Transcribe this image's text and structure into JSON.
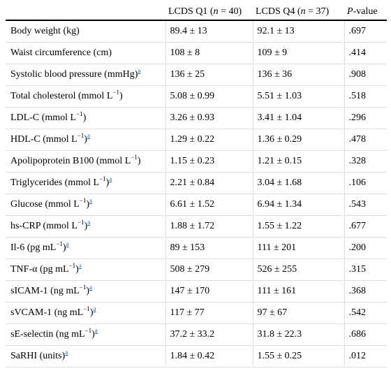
{
  "table": {
    "header": [
      [],
      [
        {
          "text": "LCDS Q1 ("
        },
        {
          "text": "n",
          "italic": true
        },
        {
          "text": " = 40)"
        }
      ],
      [
        {
          "text": "LCDS Q4 ("
        },
        {
          "text": "n",
          "italic": true
        },
        {
          "text": " = 37)"
        }
      ],
      [
        {
          "text": "P",
          "italic": true
        },
        {
          "text": "-value"
        }
      ]
    ],
    "rows": [
      {
        "label": [
          {
            "text": "Body weight (kg)"
          }
        ],
        "cells": [
          "89.4 ± 13",
          "92.1 ± 13",
          ".697"
        ]
      },
      {
        "label": [
          {
            "text": "Waist circumference (cm)"
          }
        ],
        "cells": [
          "108 ± 8",
          "109 ± 9",
          ".414"
        ]
      },
      {
        "label": [
          {
            "text": "Systolic blood pressure (mmHg)"
          }
        ],
        "note": "a",
        "cells": [
          "136 ± 25",
          "136 ± 36",
          ".908"
        ]
      },
      {
        "label": [
          {
            "text": "Total cholesterol (mmol L"
          },
          {
            "text": "−1",
            "sup": true
          },
          {
            "text": ")"
          }
        ],
        "cells": [
          "5.08 ± 0.99",
          "5.51 ± 1.03",
          ".518"
        ]
      },
      {
        "label": [
          {
            "text": "LDL-C (mmol L"
          },
          {
            "text": "−1",
            "sup": true
          },
          {
            "text": ")"
          }
        ],
        "cells": [
          "3.26 ± 0.93",
          "3.41 ± 1.04",
          ".296"
        ]
      },
      {
        "label": [
          {
            "text": "HDL-C (mmol L"
          },
          {
            "text": "−1",
            "sup": true
          },
          {
            "text": ")"
          }
        ],
        "note": "a",
        "cells": [
          "1.29 ± 0.22",
          "1.36 ± 0.29",
          ".478"
        ]
      },
      {
        "label": [
          {
            "text": "Apolipoprotein B100 (mmol L"
          },
          {
            "text": "−1",
            "sup": true
          },
          {
            "text": ")"
          }
        ],
        "cells": [
          "1.15 ± 0.23",
          "1.21 ± 0.15",
          ".328"
        ]
      },
      {
        "label": [
          {
            "text": "Triglycerides (mmol L"
          },
          {
            "text": "−1",
            "sup": true
          },
          {
            "text": ")"
          }
        ],
        "note": "a",
        "cells": [
          "2.21 ± 0.84",
          "3.04 ± 1.68",
          ".106"
        ]
      },
      {
        "label": [
          {
            "text": "Glucose (mmol L"
          },
          {
            "text": "−1",
            "sup": true
          },
          {
            "text": ")"
          }
        ],
        "note": "a",
        "cells": [
          "6.61 ± 1.52",
          "6.94 ± 1.34",
          ".543"
        ]
      },
      {
        "label": [
          {
            "text": "hs-CRP (mmol L"
          },
          {
            "text": "−1",
            "sup": true
          },
          {
            "text": ")"
          }
        ],
        "note": "a",
        "cells": [
          "1.88 ± 1.72",
          "1.55 ± 1.22",
          ".677"
        ]
      },
      {
        "label": [
          {
            "text": "Il-6 (pg mL"
          },
          {
            "text": "−1",
            "sup": true
          },
          {
            "text": ")"
          }
        ],
        "note": "a",
        "cells": [
          "89 ± 153",
          "111 ± 201",
          ".200"
        ]
      },
      {
        "label": [
          {
            "text": "TNF-α (pg mL"
          },
          {
            "text": "−1",
            "sup": true
          },
          {
            "text": ")"
          }
        ],
        "note": "a",
        "cells": [
          "508 ± 279",
          "526 ± 255",
          ".315"
        ]
      },
      {
        "label": [
          {
            "text": "sICAM-1 (ng mL"
          },
          {
            "text": "−1",
            "sup": true
          },
          {
            "text": ")"
          }
        ],
        "note": "a",
        "cells": [
          "147 ± 170",
          "111 ± 161",
          ".368"
        ]
      },
      {
        "label": [
          {
            "text": "sVCAM-1 (ng mL"
          },
          {
            "text": "−1",
            "sup": true
          },
          {
            "text": ")"
          }
        ],
        "note": "a",
        "cells": [
          "117 ± 77",
          "97 ± 67",
          ".542"
        ]
      },
      {
        "label": [
          {
            "text": "sE-selectin (ng mL"
          },
          {
            "text": "−1",
            "sup": true
          },
          {
            "text": ")"
          }
        ],
        "note": "a",
        "cells": [
          "37.2 ± 33.2",
          "31.8 ± 22.3",
          ".686"
        ]
      },
      {
        "label": [
          {
            "text": "SaRHI (units)"
          }
        ],
        "note": "a",
        "cells": [
          "1.84 ± 0.42",
          "1.55 ± 0.25",
          ".012"
        ]
      }
    ]
  }
}
